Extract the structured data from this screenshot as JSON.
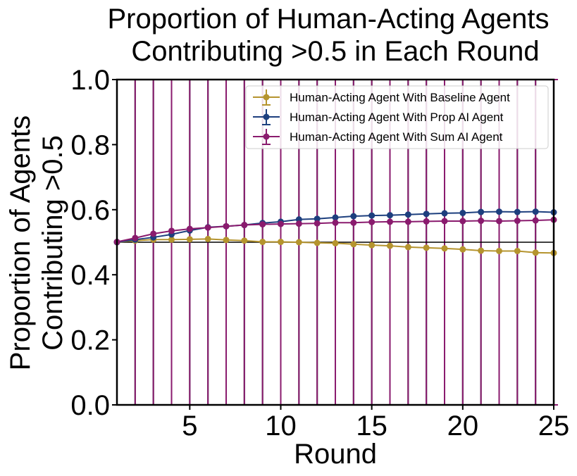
{
  "chart_data": {
    "type": "line",
    "title_lines": [
      "Proportion of Human-Acting Agents",
      "Contributing >0.5 in Each Round"
    ],
    "xlabel": "Round",
    "ylabel_lines": [
      "Proportion of Agents",
      "Contributing >0.5"
    ],
    "xlim": [
      1,
      25
    ],
    "ylim": [
      0.0,
      1.0
    ],
    "xticks": [
      5,
      10,
      15,
      20,
      25
    ],
    "xtick_labels": [
      "5",
      "10",
      "15",
      "20",
      "25"
    ],
    "yticks": [
      0.0,
      0.2,
      0.4,
      0.6,
      0.8,
      1.0
    ],
    "ytick_labels": [
      "0.0",
      "0.2",
      "0.4",
      "0.6",
      "0.8",
      "1.0"
    ],
    "reference_line": 0.5,
    "grid": false,
    "legend_position": "upper-right",
    "x": [
      1,
      2,
      3,
      4,
      5,
      6,
      7,
      8,
      9,
      10,
      11,
      12,
      13,
      14,
      15,
      16,
      17,
      18,
      19,
      20,
      21,
      22,
      23,
      24,
      25
    ],
    "series": [
      {
        "name": "Human-Acting Agent With Baseline Agent",
        "color": "#b5942e",
        "values": [
          0.5,
          0.505,
          0.508,
          0.508,
          0.509,
          0.51,
          0.507,
          0.505,
          0.501,
          0.501,
          0.5,
          0.498,
          0.497,
          0.494,
          0.491,
          0.489,
          0.485,
          0.483,
          0.481,
          0.478,
          0.474,
          0.473,
          0.473,
          0.468,
          0.467
        ]
      },
      {
        "name": "Human-Acting Agent With Prop AI Agent",
        "color": "#1d3f7e",
        "values": [
          0.5,
          0.508,
          0.515,
          0.524,
          0.536,
          0.546,
          0.549,
          0.553,
          0.559,
          0.563,
          0.57,
          0.572,
          0.576,
          0.58,
          0.582,
          0.583,
          0.585,
          0.587,
          0.589,
          0.59,
          0.593,
          0.594,
          0.593,
          0.594,
          0.592
        ]
      },
      {
        "name": "Human-Acting Agent With Sum AI Agent",
        "color": "#8a1b6e",
        "values": [
          0.501,
          0.513,
          0.526,
          0.535,
          0.541,
          0.545,
          0.549,
          0.553,
          0.555,
          0.556,
          0.557,
          0.558,
          0.56,
          0.56,
          0.562,
          0.563,
          0.563,
          0.564,
          0.565,
          0.565,
          0.566,
          0.565,
          0.566,
          0.567,
          0.569
        ]
      }
    ]
  }
}
